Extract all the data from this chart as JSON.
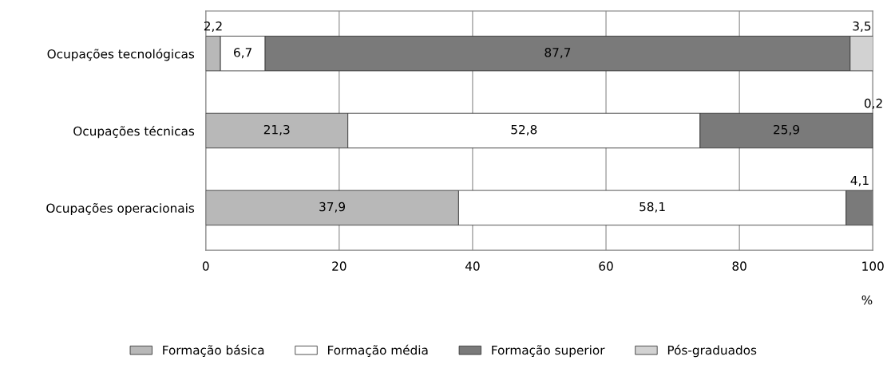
{
  "chart_data": {
    "type": "bar",
    "orientation": "horizontal",
    "stacked": true,
    "xlabel": "%",
    "categories": [
      "Ocupações tecnológicas",
      "Ocupações técnicas",
      "Ocupações operacionais"
    ],
    "series": [
      {
        "name": "Formação básica",
        "color": "#b8b8b8",
        "values": [
          2.2,
          21.3,
          37.9
        ],
        "value_labels": [
          "2,2",
          "21,3",
          "37,9"
        ]
      },
      {
        "name": "Formação média",
        "color": "#ffffff",
        "values": [
          6.7,
          52.8,
          58.1
        ],
        "value_labels": [
          "6,7",
          "52,8",
          "58,1"
        ]
      },
      {
        "name": "Formação superior",
        "color": "#7a7a7a",
        "values": [
          87.7,
          25.9,
          4.1
        ],
        "value_labels": [
          "87,7",
          "25,9",
          "4,1"
        ]
      },
      {
        "name": "Pós-graduados",
        "color": "#d2d2d2",
        "values": [
          3.5,
          0.2,
          null
        ],
        "value_labels": [
          "3,5",
          "0,2",
          null
        ]
      }
    ],
    "xlim": [
      0,
      100
    ],
    "xticks": [
      0,
      20,
      40,
      60,
      80,
      100
    ],
    "grid": "x",
    "legend": "bottom"
  }
}
